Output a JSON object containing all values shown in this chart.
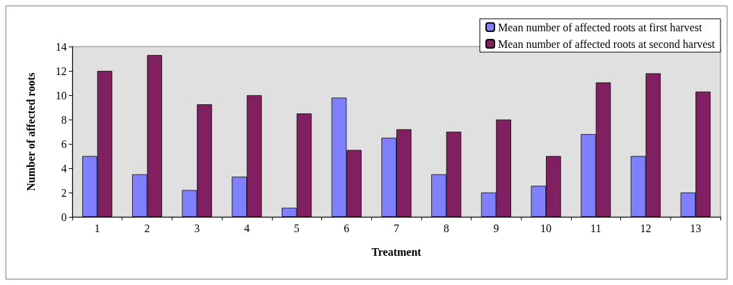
{
  "chart_data": {
    "type": "bar",
    "xlabel": "Treatment",
    "ylabel": "Number of affected roots",
    "categories": [
      "1",
      "2",
      "3",
      "4",
      "5",
      "6",
      "7",
      "8",
      "9",
      "10",
      "11",
      "12",
      "13"
    ],
    "series": [
      {
        "name": "Mean number of affected roots at first harvest",
        "color": "#8080ff",
        "values": [
          5.0,
          3.5,
          2.2,
          3.3,
          0.75,
          9.8,
          6.5,
          3.5,
          2.0,
          2.55,
          6.8,
          5.0,
          2.0
        ]
      },
      {
        "name": "Mean number of affected roots at second harvest",
        "color": "#802060",
        "values": [
          12.0,
          13.3,
          9.25,
          10.0,
          8.5,
          5.5,
          7.2,
          7.0,
          8.0,
          5.0,
          11.05,
          11.8,
          10.3
        ]
      }
    ],
    "ylim": [
      0,
      14
    ],
    "yticks": [
      0,
      2,
      4,
      6,
      8,
      10,
      12,
      14
    ],
    "grid": false,
    "legend": "top right"
  }
}
